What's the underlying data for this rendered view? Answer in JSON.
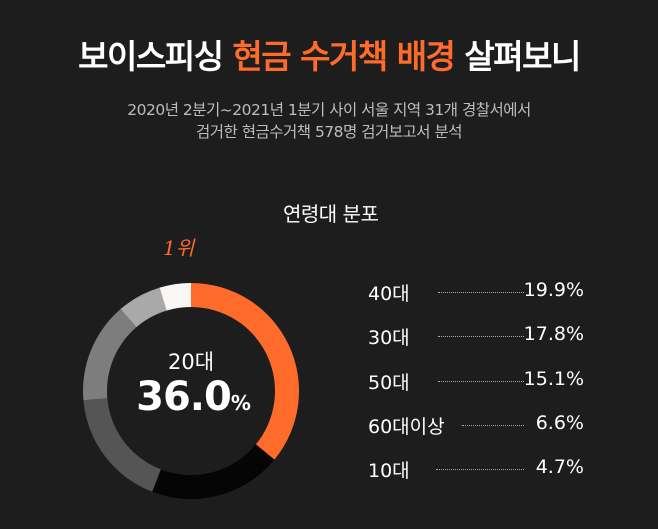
{
  "header": {
    "title_pre": "보이스피싱 ",
    "title_hl": "현금 수거책 배경",
    "title_post": " 살펴보니",
    "sub_line1": "2020년 2분기~2021년 1분기 사이 서울 지역 31개 경찰서에서",
    "sub_line2": "검거한 현금수거책 578명 검거보고서 분석"
  },
  "section_title": "연령대 분포",
  "rank_note": "1위",
  "center": {
    "label": "20대",
    "value": "36.0",
    "unit": "%"
  },
  "legend": [
    {
      "label": "40대",
      "value": "19.9%"
    },
    {
      "label": "30대",
      "value": "17.8%"
    },
    {
      "label": "50대",
      "value": "15.1%"
    },
    {
      "label": "60대이상",
      "value": "6.6%"
    },
    {
      "label": "10대",
      "value": "4.7%"
    }
  ],
  "colors": {
    "accent": "#ff6b2b",
    "background": "#1d1d1d"
  },
  "chart_data": {
    "type": "pie",
    "title": "연령대 분포",
    "categories": [
      "20대",
      "40대",
      "30대",
      "50대",
      "60대이상",
      "10대"
    ],
    "values": [
      36.0,
      19.9,
      17.8,
      15.1,
      6.6,
      4.7
    ],
    "colors": [
      "#ff6b2b",
      "#050505",
      "#555555",
      "#7d7d7d",
      "#a9a9a9",
      "#fbf7f5"
    ],
    "donut": true
  }
}
